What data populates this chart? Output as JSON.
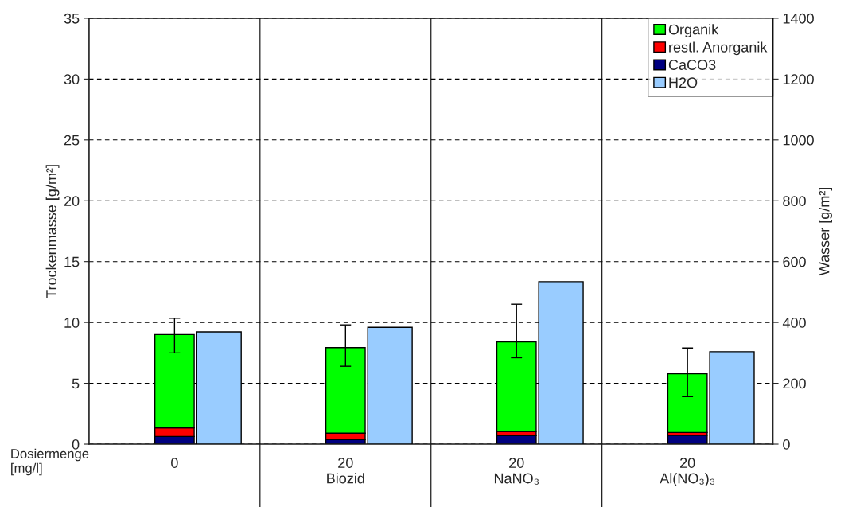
{
  "chart_data": {
    "type": "bar",
    "stacked": true,
    "categories": [
      "0",
      "20\nBiozid",
      "20\nNaNO₃",
      "20\nAl(NO₃)₃"
    ],
    "series": [
      {
        "name": "CaCO3",
        "color": "#000080",
        "values": [
          0.63,
          0.37,
          0.7,
          0.74
        ]
      },
      {
        "name": "restl. Anorganik",
        "color": "#ff0000",
        "values": [
          0.7,
          0.53,
          0.35,
          0.22
        ]
      },
      {
        "name": "Organik",
        "color": "#00ff00",
        "values": [
          7.67,
          7.03,
          7.36,
          4.82
        ],
        "errors": [
          [
            7.5,
            10.35
          ],
          [
            6.4,
            9.8
          ],
          [
            7.1,
            11.5
          ],
          [
            3.9,
            7.9
          ]
        ]
      },
      {
        "name": "H2O",
        "color": "#99ccff",
        "axis": "y2",
        "values": [
          369,
          384,
          534,
          304
        ]
      }
    ],
    "ylabel": "Trockenmasse [g/m²]",
    "y2label": "Wasser [g/m²]",
    "ylim": [
      0,
      35
    ],
    "yticks": [
      0,
      5,
      10,
      15,
      20,
      25,
      30,
      35
    ],
    "y2lim": [
      0,
      1400
    ],
    "y2ticks": [
      0,
      200,
      400,
      600,
      800,
      1000,
      1200,
      1400
    ],
    "grid": true,
    "legend": "top right",
    "annotations": [
      "Dosiermenge\n[mg/l]"
    ]
  }
}
